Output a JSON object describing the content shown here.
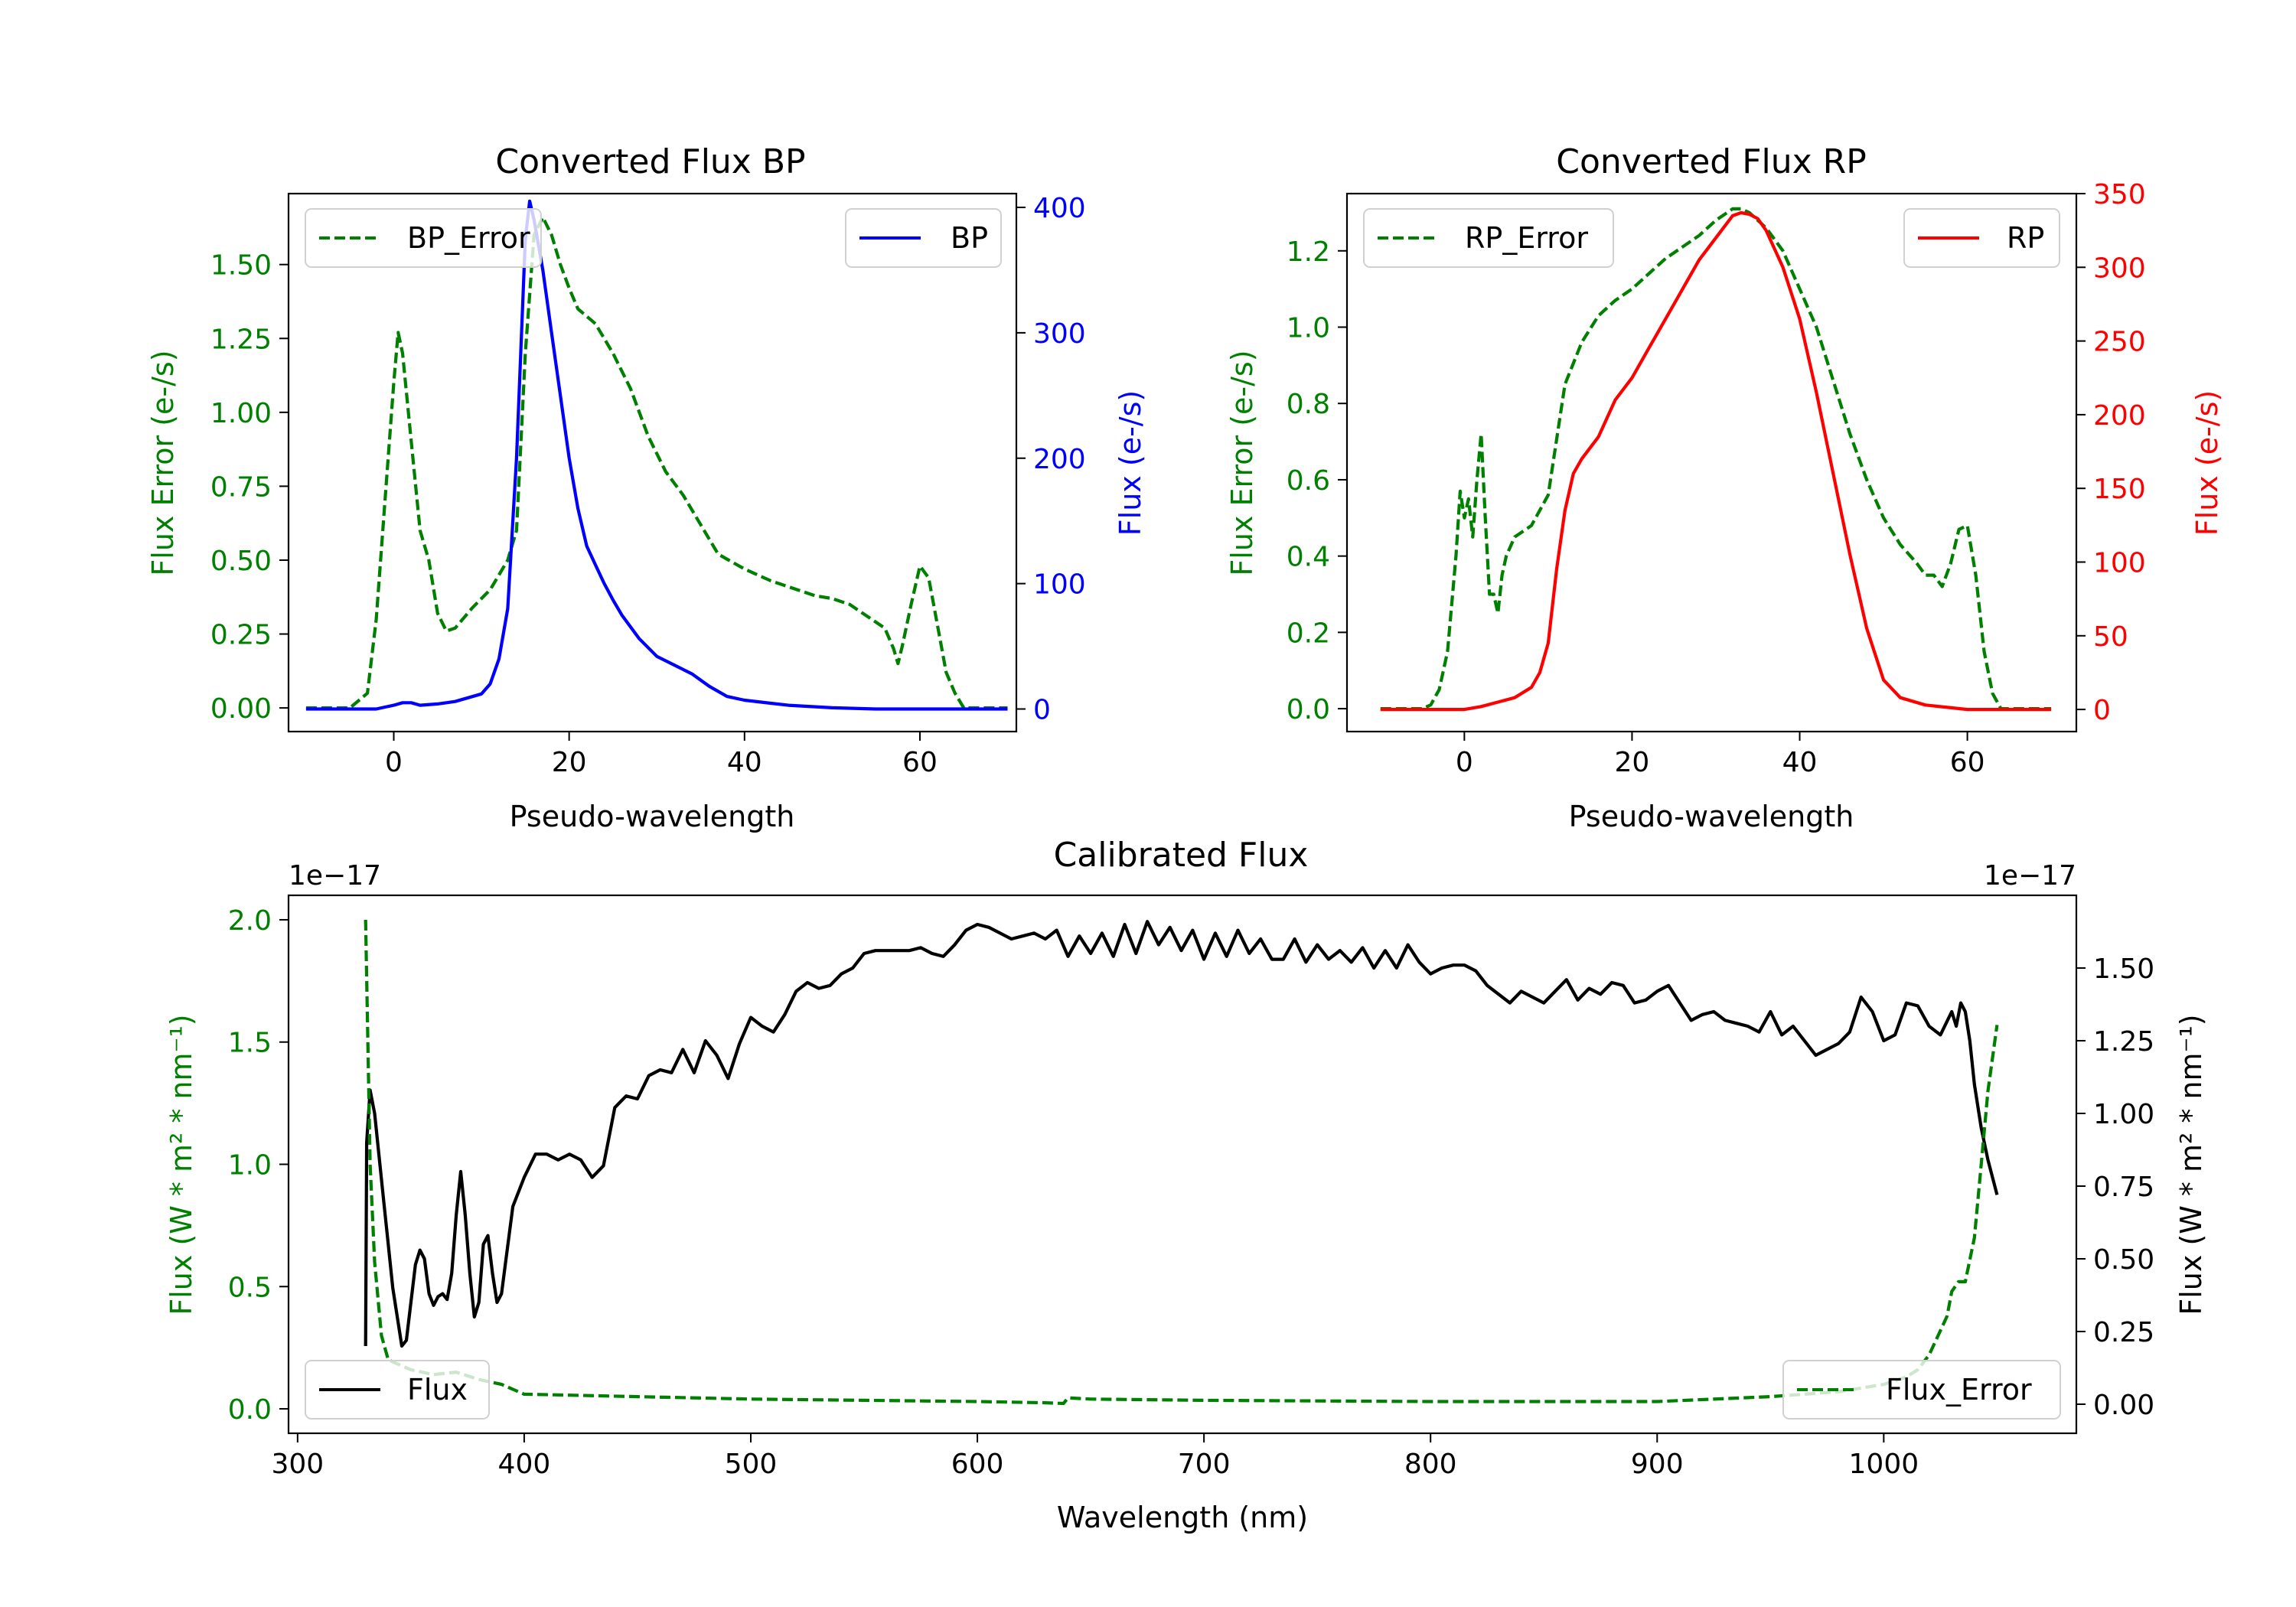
{
  "colors": {
    "green": "#008000",
    "blue": "#0000ff",
    "red": "#ff0000",
    "black": "#000000"
  },
  "chart_data": [
    {
      "id": "bp",
      "type": "line",
      "title": "Converted Flux BP",
      "xlabel": "Pseudo-wavelength",
      "ylabel_left": "Flux Error (e-/s)",
      "ylabel_right": "Flux (e-/s)",
      "xlim": [
        -12,
        71
      ],
      "ylim_left": [
        -0.08,
        1.74
      ],
      "ylim_right": [
        -18,
        411
      ],
      "xticks": [
        0,
        20,
        40,
        60
      ],
      "yticks_left": [
        "0.00",
        "0.25",
        "0.50",
        "0.75",
        "1.00",
        "1.25",
        "1.50"
      ],
      "yticks_right": [
        "0",
        "100",
        "200",
        "300",
        "400"
      ],
      "legend_left": "BP_Error",
      "legend_right": "BP",
      "series": [
        {
          "name": "BP_Error",
          "axis": "left",
          "style": "dashed",
          "color": "#008000",
          "x": [
            -10,
            -5,
            -3,
            -2,
            -1,
            0,
            0.5,
            1,
            2,
            3,
            4,
            5,
            6,
            7,
            9,
            11,
            13,
            14,
            15,
            16,
            17,
            18,
            19,
            20,
            21,
            23,
            25,
            27,
            29,
            31,
            33,
            35,
            37,
            40,
            43,
            46,
            48,
            50,
            52,
            54,
            56,
            57,
            57.5,
            58,
            59,
            60,
            61,
            62,
            63,
            64,
            65,
            70
          ],
          "y": [
            0,
            0,
            0.05,
            0.3,
            0.7,
            1.1,
            1.27,
            1.2,
            0.9,
            0.6,
            0.5,
            0.32,
            0.26,
            0.27,
            0.34,
            0.4,
            0.5,
            0.6,
            1.2,
            1.6,
            1.66,
            1.6,
            1.5,
            1.42,
            1.35,
            1.3,
            1.2,
            1.08,
            0.92,
            0.8,
            0.72,
            0.62,
            0.52,
            0.47,
            0.43,
            0.4,
            0.38,
            0.37,
            0.35,
            0.31,
            0.27,
            0.2,
            0.15,
            0.21,
            0.35,
            0.48,
            0.44,
            0.28,
            0.12,
            0.05,
            0,
            0
          ]
        },
        {
          "name": "BP",
          "axis": "right",
          "style": "solid",
          "color": "#0000ff",
          "x": [
            -10,
            -5,
            -2,
            0,
            1,
            2,
            3,
            5,
            7,
            10,
            11,
            12,
            13,
            14,
            15,
            15.5,
            16,
            17,
            18,
            19,
            20,
            21,
            22,
            23,
            24,
            25,
            26,
            28,
            30,
            32,
            34,
            36,
            38,
            40,
            45,
            50,
            55,
            60,
            65,
            70
          ],
          "y": [
            0,
            0,
            0,
            3,
            5,
            5,
            3,
            4,
            6,
            12,
            20,
            40,
            80,
            200,
            375,
            405,
            390,
            350,
            300,
            250,
            200,
            160,
            130,
            115,
            100,
            87,
            75,
            56,
            42,
            35,
            28,
            18,
            10,
            7,
            3,
            1,
            0,
            0,
            0,
            0
          ]
        }
      ]
    },
    {
      "id": "rp",
      "type": "line",
      "title": "Converted Flux RP",
      "xlabel": "Pseudo-wavelength",
      "ylabel_left": "Flux Error (e-/s)",
      "ylabel_right": "Flux (e-/s)",
      "xlim": [
        -14,
        73
      ],
      "ylim_left": [
        -0.06,
        1.35
      ],
      "ylim_right": [
        -15,
        350
      ],
      "xticks": [
        0,
        20,
        40,
        60
      ],
      "yticks_left": [
        "0.0",
        "0.2",
        "0.4",
        "0.6",
        "0.8",
        "1.0",
        "1.2"
      ],
      "yticks_right": [
        "0",
        "50",
        "100",
        "150",
        "200",
        "250",
        "300",
        "350"
      ],
      "legend_left": "RP_Error",
      "legend_right": "RP",
      "series": [
        {
          "name": "RP_Error",
          "axis": "left",
          "style": "dashed",
          "color": "#008000",
          "x": [
            -10,
            -5,
            -4,
            -3,
            -2,
            -1,
            -0.5,
            0,
            0.5,
            1,
            1.5,
            2,
            2.5,
            3,
            3.5,
            4,
            4.5,
            5,
            6,
            8,
            10,
            12,
            14,
            16,
            18,
            20,
            22,
            24,
            26,
            28,
            30,
            32,
            33,
            34,
            36,
            38,
            40,
            42,
            44,
            46,
            48,
            50,
            52,
            54,
            55,
            56,
            57,
            58,
            59,
            60,
            61,
            62,
            63,
            64,
            65,
            70
          ],
          "y": [
            0,
            0,
            0.01,
            0.05,
            0.15,
            0.4,
            0.57,
            0.5,
            0.55,
            0.45,
            0.6,
            0.72,
            0.5,
            0.3,
            0.3,
            0.25,
            0.35,
            0.4,
            0.45,
            0.48,
            0.56,
            0.85,
            0.96,
            1.03,
            1.07,
            1.1,
            1.14,
            1.18,
            1.21,
            1.24,
            1.28,
            1.31,
            1.31,
            1.3,
            1.26,
            1.2,
            1.1,
            1.0,
            0.86,
            0.72,
            0.6,
            0.5,
            0.43,
            0.38,
            0.35,
            0.35,
            0.32,
            0.38,
            0.47,
            0.48,
            0.35,
            0.15,
            0.04,
            0,
            0,
            0
          ]
        },
        {
          "name": "RP",
          "axis": "right",
          "style": "solid",
          "color": "#ff0000",
          "x": [
            -10,
            -5,
            0,
            2,
            4,
            6,
            8,
            9,
            10,
            11,
            12,
            13,
            14,
            16,
            18,
            20,
            22,
            24,
            26,
            28,
            30,
            32,
            33,
            34,
            35,
            36,
            38,
            40,
            42,
            44,
            46,
            48,
            50,
            52,
            55,
            60,
            65,
            70
          ],
          "y": [
            0,
            0,
            0,
            2,
            5,
            8,
            15,
            25,
            45,
            95,
            135,
            160,
            170,
            185,
            210,
            225,
            245,
            265,
            285,
            305,
            320,
            335,
            337,
            336,
            333,
            325,
            300,
            265,
            215,
            160,
            105,
            55,
            20,
            8,
            3,
            0,
            0,
            0
          ]
        }
      ]
    },
    {
      "id": "calibrated",
      "type": "line",
      "title": "Calibrated Flux",
      "xlabel": "Wavelength (nm)",
      "ylabel_left": "Flux (W * m² * nm⁻¹)",
      "ylabel_right": "Flux (W * m² * nm⁻¹)",
      "offset_left": "1e−17",
      "offset_right": "1e−17",
      "xlim": [
        296,
        1085
      ],
      "ylim_left": [
        -0.1,
        2.1
      ],
      "ylim_right": [
        -0.1,
        1.75
      ],
      "xticks": [
        300,
        400,
        500,
        600,
        700,
        800,
        900,
        1000
      ],
      "yticks_left": [
        "0.0",
        "0.5",
        "1.0",
        "1.5",
        "2.0"
      ],
      "yticks_right": [
        "0.00",
        "0.25",
        "0.50",
        "0.75",
        "1.00",
        "1.25",
        "1.50"
      ],
      "legend_left": "Flux",
      "legend_right": "Flux_Error",
      "series": [
        {
          "name": "Flux",
          "axis": "right",
          "style": "solid",
          "color": "#000000",
          "x": [
            330,
            330.5,
            332,
            334,
            336,
            338,
            340,
            342,
            344,
            346,
            348,
            350,
            352,
            354,
            356,
            358,
            360,
            362,
            364,
            366,
            368,
            370,
            372,
            374,
            376,
            378,
            380,
            382,
            384,
            386,
            388,
            390,
            392,
            395,
            400,
            405,
            410,
            415,
            420,
            425,
            430,
            435,
            440,
            445,
            450,
            455,
            460,
            465,
            470,
            475,
            480,
            485,
            490,
            495,
            500,
            505,
            510,
            515,
            520,
            525,
            530,
            535,
            540,
            545,
            550,
            555,
            560,
            565,
            570,
            575,
            580,
            585,
            590,
            595,
            600,
            605,
            610,
            615,
            620,
            625,
            630,
            635,
            640,
            645,
            650,
            655,
            660,
            665,
            670,
            675,
            680,
            685,
            690,
            695,
            700,
            705,
            710,
            715,
            720,
            725,
            730,
            735,
            740,
            745,
            750,
            755,
            760,
            765,
            770,
            775,
            780,
            785,
            790,
            795,
            800,
            805,
            810,
            815,
            820,
            825,
            830,
            835,
            840,
            845,
            850,
            855,
            860,
            865,
            870,
            875,
            880,
            885,
            890,
            895,
            900,
            905,
            910,
            915,
            920,
            925,
            930,
            935,
            940,
            945,
            950,
            955,
            960,
            965,
            970,
            975,
            980,
            985,
            990,
            995,
            1000,
            1005,
            1010,
            1015,
            1020,
            1025,
            1030,
            1032,
            1034,
            1036,
            1038,
            1040,
            1043,
            1046,
            1050
          ],
          "y": [
            0.2,
            0.9,
            1.08,
            1.0,
            0.85,
            0.7,
            0.55,
            0.4,
            0.3,
            0.2,
            0.22,
            0.35,
            0.48,
            0.53,
            0.5,
            0.38,
            0.34,
            0.37,
            0.38,
            0.36,
            0.45,
            0.65,
            0.8,
            0.65,
            0.45,
            0.3,
            0.35,
            0.55,
            0.58,
            0.45,
            0.35,
            0.38,
            0.5,
            0.68,
            0.78,
            0.86,
            0.86,
            0.84,
            0.86,
            0.84,
            0.78,
            0.82,
            1.02,
            1.06,
            1.05,
            1.13,
            1.15,
            1.14,
            1.22,
            1.14,
            1.25,
            1.2,
            1.12,
            1.24,
            1.33,
            1.3,
            1.28,
            1.34,
            1.42,
            1.45,
            1.43,
            1.44,
            1.48,
            1.5,
            1.55,
            1.56,
            1.56,
            1.56,
            1.56,
            1.57,
            1.55,
            1.54,
            1.58,
            1.63,
            1.65,
            1.64,
            1.62,
            1.6,
            1.61,
            1.62,
            1.6,
            1.63,
            1.54,
            1.61,
            1.55,
            1.62,
            1.54,
            1.65,
            1.55,
            1.66,
            1.58,
            1.64,
            1.56,
            1.63,
            1.53,
            1.62,
            1.54,
            1.63,
            1.55,
            1.6,
            1.53,
            1.53,
            1.6,
            1.52,
            1.58,
            1.53,
            1.56,
            1.52,
            1.57,
            1.5,
            1.56,
            1.5,
            1.58,
            1.52,
            1.48,
            1.5,
            1.51,
            1.51,
            1.49,
            1.44,
            1.41,
            1.38,
            1.42,
            1.4,
            1.38,
            1.42,
            1.46,
            1.39,
            1.43,
            1.41,
            1.45,
            1.44,
            1.38,
            1.39,
            1.42,
            1.44,
            1.38,
            1.32,
            1.34,
            1.35,
            1.32,
            1.31,
            1.3,
            1.28,
            1.35,
            1.27,
            1.3,
            1.25,
            1.2,
            1.22,
            1.24,
            1.28,
            1.4,
            1.35,
            1.25,
            1.27,
            1.38,
            1.37,
            1.3,
            1.27,
            1.35,
            1.3,
            1.38,
            1.35,
            1.25,
            1.1,
            0.95,
            0.84,
            0.72
          ]
        },
        {
          "name": "Flux_Error",
          "axis": "left",
          "style": "dashed",
          "color": "#008000",
          "x": [
            330,
            332,
            334,
            337,
            340,
            345,
            350,
            360,
            370,
            380,
            390,
            400,
            450,
            500,
            550,
            600,
            630,
            638,
            640,
            650,
            700,
            800,
            900,
            950,
            980,
            1000,
            1010,
            1015,
            1020,
            1025,
            1028,
            1030,
            1033,
            1036,
            1040,
            1043,
            1046,
            1050
          ],
          "y": [
            2.0,
            1.0,
            0.6,
            0.3,
            0.2,
            0.18,
            0.16,
            0.14,
            0.15,
            0.12,
            0.1,
            0.06,
            0.05,
            0.04,
            0.035,
            0.03,
            0.025,
            0.022,
            0.045,
            0.04,
            0.035,
            0.03,
            0.03,
            0.05,
            0.07,
            0.1,
            0.13,
            0.16,
            0.22,
            0.32,
            0.38,
            0.48,
            0.52,
            0.52,
            0.7,
            1.0,
            1.3,
            1.57
          ]
        }
      ]
    }
  ]
}
